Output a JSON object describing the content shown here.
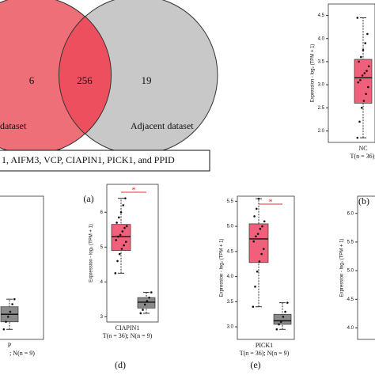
{
  "chart_data": [
    {
      "type": "venn",
      "panel": "(a)",
      "sets": [
        {
          "name": "dataset",
          "color": "#ef6f78"
        },
        {
          "name": "Adjacent dataset",
          "color": "#c8c8c8"
        }
      ],
      "values": [
        6,
        256,
        19
      ],
      "overlap_color": "#ee4f5e",
      "note": "1, AIFM3, VCP, CIAPIN1, PICK1, and PPID"
    },
    {
      "type": "box",
      "panel": "(b)",
      "xlabel": "NC",
      "nlabel": "T(n = 36);",
      "ylabel": "Expression - log₂ (TPM + 1)",
      "ylim": [
        1.75,
        4.75
      ],
      "yticks": [
        {
          "value": 2,
          "label": "2.0"
        },
        2.5,
        {
          "value": 3,
          "label": "3.0"
        },
        3.5,
        {
          "value": 4,
          "label": "4.0"
        },
        4.5
      ],
      "groups": [
        {
          "color": "#f0607a",
          "stats": [
            1.85,
            2.6,
            3.15,
            3.55,
            4.45
          ],
          "points": [
            1.85,
            2.2,
            2.5,
            2.65,
            2.8,
            2.95,
            3.05,
            3.1,
            3.2,
            3.25,
            3.3,
            3.4,
            3.5,
            3.6,
            3.75,
            3.9,
            4.1,
            4.45
          ]
        }
      ]
    },
    {
      "type": "box",
      "panel": null,
      "xlabel": "P",
      "nlabel": "; N(n = 9)",
      "ylim": [
        2.75,
        5.6
      ],
      "groups": [
        {
          "color": "#8a8a8a",
          "stats": [
            2.95,
            3.1,
            3.25,
            3.4,
            3.55
          ],
          "points": [
            2.95,
            3.1,
            3.2,
            3.3,
            3.45,
            3.55
          ]
        }
      ]
    },
    {
      "type": "box",
      "panel": "(d)",
      "xlabel": "CIAPIN1",
      "nlabel": "T(n = 36); N(n = 9)",
      "ylabel": "Expression - log₂ (TPM + 1)",
      "significance": "*",
      "ylim": [
        2.85,
        6.8
      ],
      "yticks": [
        3,
        4,
        5,
        6
      ],
      "groups": [
        {
          "color": "#f0607a",
          "stats": [
            4.25,
            4.9,
            5.3,
            5.65,
            6.4
          ],
          "points": [
            4.25,
            4.6,
            4.8,
            4.95,
            5.05,
            5.15,
            5.2,
            5.3,
            5.35,
            5.45,
            5.55,
            5.6,
            5.7,
            5.85,
            6.0,
            6.2,
            6.4
          ]
        },
        {
          "color": "#8a8a8a",
          "stats": [
            3.1,
            3.25,
            3.42,
            3.55,
            3.7
          ],
          "points": [
            3.1,
            3.2,
            3.35,
            3.45,
            3.55,
            3.7
          ]
        }
      ]
    },
    {
      "type": "box",
      "panel": "(e)",
      "xlabel": "PICK1",
      "nlabel": "T(n = 36); N(n = 9)",
      "ylabel": "Expression - log₂ (TPM + 1)",
      "significance": "*",
      "ylim": [
        2.75,
        5.6
      ],
      "yticks": [
        {
          "value": 3,
          "label": "3.0"
        },
        3.5,
        {
          "value": 4,
          "label": "4.0"
        },
        4.5,
        {
          "value": 5,
          "label": "5.0"
        },
        5.5
      ],
      "groups": [
        {
          "color": "#f0607a",
          "stats": [
            3.4,
            4.28,
            4.75,
            5.05,
            5.55
          ],
          "points": [
            3.4,
            3.8,
            4.1,
            4.3,
            4.45,
            4.55,
            4.7,
            4.8,
            4.85,
            4.95,
            5.0,
            5.1,
            5.2,
            5.35,
            5.55
          ]
        },
        {
          "color": "#8a8a8a",
          "stats": [
            2.95,
            3.05,
            3.12,
            3.25,
            3.48
          ],
          "points": [
            2.95,
            3.05,
            3.1,
            3.2,
            3.3,
            3.48
          ]
        }
      ]
    },
    {
      "type": "box",
      "panel": null,
      "ylabel": "Expression - log₂ (TPM + 1)",
      "ylim": [
        3.8,
        6.3
      ],
      "yticks": [
        {
          "value": 4,
          "label": "4.0"
        },
        4.5,
        {
          "value": 5,
          "label": "5.0"
        },
        5.5,
        {
          "value": 6,
          "label": "6.0"
        }
      ],
      "groups": []
    }
  ]
}
